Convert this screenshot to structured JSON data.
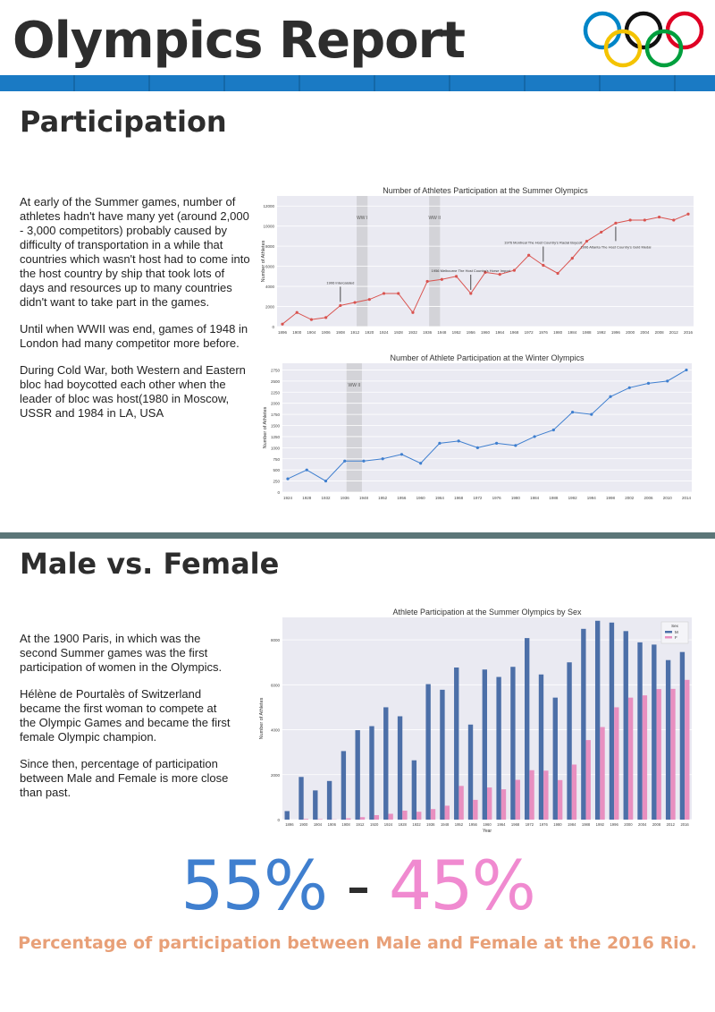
{
  "header": {
    "title": "Olympics Report"
  },
  "participation": {
    "heading": "Participation",
    "paragraphs": [
      "At early of the Summer games, number of athletes hadn't have many yet (around 2,000 - 3,000 competitors) probably caused by difficulty of transportation in a while that countries which wasn't host had to come into the host country by ship that took lots of days and resources up to many countries didn't want to take part in the games.",
      "Until when WWII was end, games of 1948 in London had many competitor more before.",
      "During Cold War, both Western and Eastern bloc had boycotted each other when the leader of bloc was host(1980 in Moscow, USSR and 1984 in LA, USA"
    ]
  },
  "male_female": {
    "heading": "Male vs. Female",
    "paragraphs": [
      "At the 1900 Paris, in which was the second Summer games was the first participation of women in the Olympics.",
      "Hélène de Pourtalès of Switzerland became the first woman to compete at the Olympic Games and became the first female Olympic champion.",
      "Since then, percentage of participation between Male and Female is more close than past."
    ],
    "male_pct": "55%",
    "separator": " - ",
    "female_pct": "45%",
    "caption": "Percentage of participation between Male and Female at the 2016 Rio."
  },
  "colors": {
    "summer_line": "#d9534f",
    "winter_line": "#3f7fcf",
    "male_bar": "#4c6fa8",
    "female_bar": "#e88fc0",
    "plot_bg": "#eaeaf2",
    "war_band": "#d3d3d8"
  },
  "chart_data": [
    {
      "type": "line",
      "title": "Number of Athletes Participation at the Summer Olympics",
      "ylabel": "Number of Athletes",
      "xlabel": "",
      "x": [
        "1896",
        "1900",
        "1904",
        "1906",
        "1908",
        "1912",
        "1920",
        "1924",
        "1928",
        "1932",
        "1936",
        "1948",
        "1952",
        "1956",
        "1960",
        "1964",
        "1968",
        "1972",
        "1976",
        "1980",
        "1984",
        "1988",
        "1992",
        "1996",
        "2000",
        "2004",
        "2008",
        "2012",
        "2016"
      ],
      "y_ticks": [
        "0",
        "2000",
        "4000",
        "6000",
        "8000",
        "10000",
        "12000"
      ],
      "ylim": [
        0,
        13000
      ],
      "series": [
        {
          "name": "",
          "values": [
            250,
            1400,
            700,
            900,
            2100,
            2400,
            2700,
            3300,
            3300,
            1400,
            4500,
            4700,
            5000,
            3300,
            5400,
            5200,
            5600,
            7100,
            6100,
            5300,
            6800,
            8500,
            9400,
            10300,
            10600,
            10600,
            10900,
            10600,
            11200
          ]
        }
      ],
      "war_bands": [
        [
          "1912",
          "1920"
        ],
        [
          "1936",
          "1948"
        ]
      ],
      "band_labels": [
        "WW I",
        "WW II"
      ],
      "annotations": [
        {
          "x": "1908",
          "text": "1906 Intercalated"
        },
        {
          "x": "1956",
          "text": "1956 Melbourne The Host Country's Horse Import"
        },
        {
          "x": "1976",
          "text": "1976 Montreal The Host Country's Racial Boycott"
        },
        {
          "x": "1996",
          "text": "1996 Atlanta The Host Country's Gold Medal"
        }
      ]
    },
    {
      "type": "line",
      "title": "Number of Athlete Participation at the Winter Olympics",
      "ylabel": "Number of Athletes",
      "xlabel": "",
      "x": [
        "1924",
        "1928",
        "1932",
        "1936",
        "1948",
        "1952",
        "1956",
        "1960",
        "1964",
        "1968",
        "1972",
        "1976",
        "1980",
        "1984",
        "1988",
        "1992",
        "1994",
        "1998",
        "2002",
        "2006",
        "2010",
        "2014"
      ],
      "y_ticks": [
        "0",
        "250",
        "500",
        "750",
        "1000",
        "1250",
        "1500",
        "1750",
        "2000",
        "2250",
        "2500",
        "2750"
      ],
      "ylim": [
        0,
        2900
      ],
      "series": [
        {
          "name": "",
          "values": [
            300,
            500,
            250,
            700,
            700,
            750,
            850,
            650,
            1100,
            1150,
            1000,
            1100,
            1050,
            1250,
            1400,
            1800,
            1750,
            2150,
            2350,
            2450,
            2500,
            2750
          ]
        }
      ],
      "war_bands": [
        [
          "1936",
          "1948"
        ]
      ],
      "band_labels": [
        "WW II"
      ]
    },
    {
      "type": "bar",
      "title": "Athlete Participation at the Summer Olympics by Sex",
      "xlabel": "Year",
      "ylabel": "Number of Athletes",
      "legend_title": "Sex",
      "categories": [
        "1896",
        "1900",
        "1904",
        "1906",
        "1908",
        "1912",
        "1920",
        "1924",
        "1928",
        "1932",
        "1936",
        "1948",
        "1952",
        "1956",
        "1960",
        "1964",
        "1968",
        "1972",
        "1976",
        "1980",
        "1984",
        "1988",
        "1992",
        "1996",
        "2000",
        "2004",
        "2008",
        "2012",
        "2016"
      ],
      "y_ticks": [
        "0",
        "2000",
        "4000",
        "6000",
        "8000"
      ],
      "ylim": [
        0,
        9000
      ],
      "series": [
        {
          "name": "M",
          "values": [
            380,
            1900,
            1300,
            1720,
            3050,
            3980,
            4160,
            5000,
            4600,
            2640,
            6030,
            5780,
            6770,
            4230,
            6680,
            6350,
            6800,
            8080,
            6460,
            5430,
            7000,
            8490,
            8850,
            8770,
            8390,
            7890,
            7790,
            7100,
            7460
          ]
        },
        {
          "name": "F",
          "values": [
            0,
            30,
            20,
            10,
            60,
            110,
            200,
            260,
            400,
            350,
            470,
            620,
            1500,
            880,
            1430,
            1350,
            1770,
            2200,
            2180,
            1760,
            2450,
            3540,
            4120,
            5000,
            5430,
            5530,
            5810,
            5820,
            6220
          ]
        }
      ]
    }
  ]
}
